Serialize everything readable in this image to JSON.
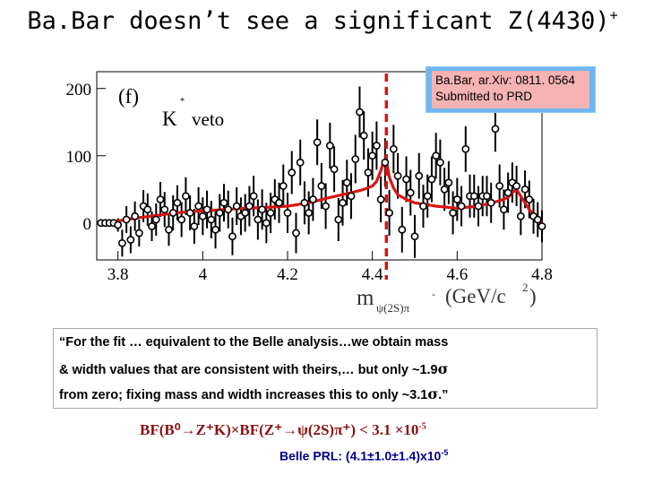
{
  "slide": {
    "title_main": "Ba.Bar doesn’t see a significant Z(4430)",
    "title_sup": "+"
  },
  "chart_data": {
    "type": "scatter",
    "panel_label": "(f)",
    "annotation_main": "K",
    "annotation_sup": "*",
    "annotation_suffix": "veto",
    "xlabel_m": "m",
    "xlabel_sub": "ψ(2S)π",
    "xlabel_sub_sup": "-",
    "xlabel_units": "(GeV/c",
    "xlabel_units_sup": "2",
    "xlabel_units_end": ")",
    "xlim": [
      3.75,
      4.8
    ],
    "ylim": [
      -55,
      225
    ],
    "x_ticks": [
      "3.8",
      "4",
      "4.2",
      "4.4",
      "4.6",
      "4.8"
    ],
    "x_tick_values": [
      3.8,
      4.0,
      4.2,
      4.4,
      4.6,
      4.8
    ],
    "y_ticks": [
      "0",
      "100",
      "200"
    ],
    "y_tick_values": [
      0,
      100,
      200
    ],
    "marker_line_x": 4.433,
    "colors": {
      "fit": "#d91414",
      "marker_line": "#d91414",
      "points": "#000000"
    },
    "points": [
      [
        3.76,
        0,
        3
      ],
      [
        3.77,
        0,
        3
      ],
      [
        3.78,
        0,
        3
      ],
      [
        3.79,
        0,
        3
      ],
      [
        3.8,
        -3,
        10
      ],
      [
        3.81,
        -30,
        20
      ],
      [
        3.82,
        5,
        20
      ],
      [
        3.83,
        -25,
        20
      ],
      [
        3.84,
        10,
        22
      ],
      [
        3.85,
        -15,
        20
      ],
      [
        3.86,
        25,
        24
      ],
      [
        3.87,
        20,
        24
      ],
      [
        3.88,
        -5,
        22
      ],
      [
        3.89,
        5,
        24
      ],
      [
        3.9,
        35,
        26
      ],
      [
        3.91,
        20,
        26
      ],
      [
        3.92,
        -10,
        24
      ],
      [
        3.93,
        15,
        26
      ],
      [
        3.94,
        30,
        26
      ],
      [
        3.95,
        5,
        26
      ],
      [
        3.96,
        40,
        28
      ],
      [
        3.97,
        15,
        26
      ],
      [
        3.98,
        -5,
        26
      ],
      [
        3.99,
        25,
        28
      ],
      [
        4.0,
        10,
        28
      ],
      [
        4.01,
        20,
        28
      ],
      [
        4.02,
        5,
        28
      ],
      [
        4.03,
        -10,
        28
      ],
      [
        4.04,
        15,
        28
      ],
      [
        4.05,
        30,
        28
      ],
      [
        4.06,
        20,
        28
      ],
      [
        4.07,
        -20,
        28
      ],
      [
        4.08,
        25,
        28
      ],
      [
        4.09,
        10,
        28
      ],
      [
        4.1,
        15,
        28
      ],
      [
        4.11,
        25,
        30
      ],
      [
        4.12,
        40,
        30
      ],
      [
        4.13,
        5,
        30
      ],
      [
        4.14,
        20,
        30
      ],
      [
        4.15,
        0,
        30
      ],
      [
        4.16,
        15,
        30
      ],
      [
        4.17,
        35,
        30
      ],
      [
        4.18,
        30,
        30
      ],
      [
        4.19,
        55,
        32
      ],
      [
        4.2,
        15,
        30
      ],
      [
        4.21,
        75,
        32
      ],
      [
        4.22,
        -15,
        30
      ],
      [
        4.23,
        90,
        34
      ],
      [
        4.24,
        30,
        32
      ],
      [
        4.25,
        15,
        32
      ],
      [
        4.26,
        35,
        32
      ],
      [
        4.27,
        120,
        34
      ],
      [
        4.28,
        55,
        34
      ],
      [
        4.29,
        25,
        34
      ],
      [
        4.3,
        115,
        34
      ],
      [
        4.31,
        80,
        34
      ],
      [
        4.32,
        5,
        32
      ],
      [
        4.33,
        30,
        34
      ],
      [
        4.34,
        60,
        34
      ],
      [
        4.35,
        40,
        34
      ],
      [
        4.36,
        95,
        36
      ],
      [
        4.37,
        165,
        38
      ],
      [
        4.38,
        130,
        36
      ],
      [
        4.39,
        75,
        36
      ],
      [
        4.4,
        100,
        36
      ],
      [
        4.41,
        115,
        36
      ],
      [
        4.42,
        35,
        34
      ],
      [
        4.43,
        90,
        36
      ],
      [
        4.44,
        15,
        34
      ],
      [
        4.45,
        110,
        36
      ],
      [
        4.46,
        70,
        34
      ],
      [
        4.47,
        -10,
        34
      ],
      [
        4.48,
        65,
        34
      ],
      [
        4.49,
        45,
        34
      ],
      [
        4.5,
        -20,
        32
      ],
      [
        4.51,
        70,
        34
      ],
      [
        4.52,
        25,
        32
      ],
      [
        4.53,
        40,
        32
      ],
      [
        4.54,
        65,
        34
      ],
      [
        4.55,
        100,
        34
      ],
      [
        4.56,
        90,
        34
      ],
      [
        4.57,
        50,
        32
      ],
      [
        4.58,
        60,
        32
      ],
      [
        4.59,
        15,
        32
      ],
      [
        4.6,
        35,
        32
      ],
      [
        4.61,
        25,
        30
      ],
      [
        4.62,
        110,
        34
      ],
      [
        4.63,
        40,
        32
      ],
      [
        4.64,
        40,
        32
      ],
      [
        4.65,
        25,
        30
      ],
      [
        4.66,
        40,
        30
      ],
      [
        4.67,
        40,
        30
      ],
      [
        4.68,
        30,
        30
      ],
      [
        4.69,
        140,
        34
      ],
      [
        4.7,
        55,
        32
      ],
      [
        4.71,
        20,
        30
      ],
      [
        4.72,
        45,
        30
      ],
      [
        4.73,
        60,
        30
      ],
      [
        4.74,
        55,
        30
      ],
      [
        4.75,
        10,
        28
      ],
      [
        4.76,
        50,
        28
      ],
      [
        4.77,
        35,
        28
      ],
      [
        4.78,
        10,
        26
      ],
      [
        4.79,
        5,
        26
      ],
      [
        4.8,
        -5,
        24
      ]
    ],
    "fit_curve": [
      [
        3.76,
        0
      ],
      [
        3.78,
        0
      ],
      [
        3.8,
        3
      ],
      [
        3.85,
        8
      ],
      [
        3.9,
        12
      ],
      [
        3.95,
        16
      ],
      [
        4.0,
        18
      ],
      [
        4.05,
        20
      ],
      [
        4.1,
        22
      ],
      [
        4.15,
        23
      ],
      [
        4.2,
        25
      ],
      [
        4.25,
        30
      ],
      [
        4.3,
        38
      ],
      [
        4.35,
        45
      ],
      [
        4.38,
        50
      ],
      [
        4.4,
        55
      ],
      [
        4.41,
        62
      ],
      [
        4.42,
        78
      ],
      [
        4.425,
        88
      ],
      [
        4.43,
        92
      ],
      [
        4.435,
        86
      ],
      [
        4.44,
        68
      ],
      [
        4.45,
        52
      ],
      [
        4.46,
        42
      ],
      [
        4.48,
        35
      ],
      [
        4.5,
        30
      ],
      [
        4.55,
        25
      ],
      [
        4.6,
        22
      ],
      [
        4.65,
        25
      ],
      [
        4.7,
        33
      ],
      [
        4.72,
        38
      ],
      [
        4.73,
        45
      ],
      [
        4.74,
        50
      ],
      [
        4.75,
        40
      ],
      [
        4.77,
        20
      ],
      [
        4.79,
        5
      ],
      [
        4.8,
        0
      ]
    ]
  },
  "ref_box": {
    "line1": "Ba.Bar, ar.Xiv: 0811. 0564",
    "line2": "Submitted to PRD"
  },
  "quote": {
    "line1": "“For the fit … equivalent to the Belle analysis…we obtain mass",
    "line2_text": "& width values that are consistent with theirs,… but only ~1.9",
    "line3_text": "from zero; fixing mass and width increases this to only ~3.1",
    "sigma": "σ",
    "line3_end": ".”"
  },
  "bf": {
    "text": "BF(B⁰→Z⁺K)×BF(Z⁺→ψ(2S)π⁺) < 3.1 ×10",
    "exp": "-5"
  },
  "belle": {
    "text": "Belle PRL: (4.1±1.0±1.4)x10",
    "exp": "-5"
  }
}
